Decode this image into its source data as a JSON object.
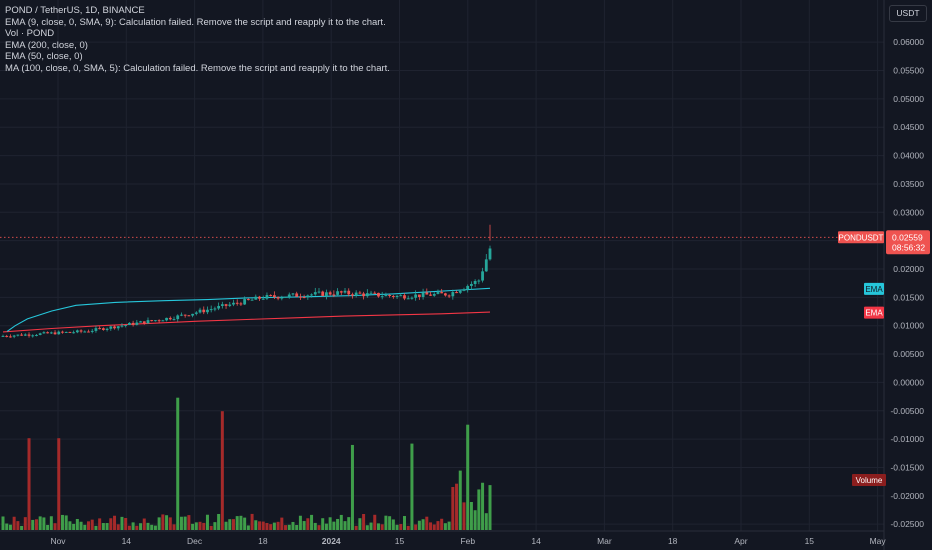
{
  "legend": {
    "title": "POND / TetherUS, 1D, BINANCE",
    "lines": [
      "EMA (9, close, 0, SMA, 9): Calculation failed. Remove the script and reapply it to the chart.",
      "Vol · POND",
      "EMA (200, close, 0)",
      "EMA (50, close, 0)",
      "MA (100, close, 0, SMA, 5): Calculation failed. Remove the script and reapply it to the chart."
    ]
  },
  "currency_label": "USDT",
  "colors": {
    "background": "#131722",
    "grid": "#1f2330",
    "up": "#26a69a",
    "down": "#ef5350",
    "vol_up": "#3f9e4a",
    "vol_down": "#a52a2a",
    "ema50": "#26c6da",
    "ema200": "#f23645",
    "text": "#d1d4dc",
    "axis_text": "#b2b5be"
  },
  "chart_data": {
    "type": "candlestick",
    "x_type": "time",
    "x_ticks": [
      "Nov",
      "14",
      "Dec",
      "18",
      "2024",
      "15",
      "Feb",
      "14",
      "Mar",
      "18",
      "Apr",
      "15",
      "May"
    ],
    "y_ticks": [
      "0.06000",
      "0.05500",
      "0.05000",
      "0.04500",
      "0.04000",
      "0.03500",
      "0.03000",
      "0.02500",
      "0.02000",
      "0.01500",
      "0.01000",
      "0.00500",
      "0.00000",
      "-0.00500",
      "-0.01000",
      "-0.01500",
      "-0.02000",
      "-0.02500"
    ],
    "ylim": [
      -0.0255,
      0.0625
    ],
    "grid": true,
    "last_price": {
      "symbol": "PONDUSDT",
      "value": "0.02559",
      "countdown": "08:56:32"
    },
    "ema_labels": [
      {
        "text": "EMA",
        "value": 0.0165
      },
      {
        "text": "EMA",
        "value": 0.0123
      }
    ],
    "volume_label": "Volume",
    "segments": [
      {
        "n": 22,
        "from": 0.0082,
        "to": 0.009
      },
      {
        "n": 24,
        "from": 0.009,
        "to": 0.0115
      },
      {
        "n": 24,
        "from": 0.0115,
        "to": 0.015
      },
      {
        "n": 20,
        "from": 0.015,
        "to": 0.0158
      },
      {
        "n": 16,
        "from": 0.0158,
        "to": 0.0152
      },
      {
        "n": 14,
        "from": 0.0152,
        "to": 0.0156
      },
      {
        "n": 8,
        "from": 0.0156,
        "to": 0.018
      },
      {
        "n": 4,
        "from": 0.018,
        "to": 0.0255
      }
    ],
    "ema50": [
      [
        0.0085,
        0.009
      ],
      [
        0.025,
        0.01
      ],
      [
        0.05,
        0.0112
      ],
      [
        0.1,
        0.0126
      ],
      [
        0.15,
        0.0136
      ],
      [
        0.23,
        0.0141
      ],
      [
        0.33,
        0.0144
      ],
      [
        0.42,
        0.0146
      ],
      [
        0.5,
        0.0149
      ],
      [
        0.62,
        0.0151
      ],
      [
        0.72,
        0.0153
      ],
      [
        0.8,
        0.0156
      ],
      [
        0.88,
        0.016
      ],
      [
        0.94,
        0.0163
      ],
      [
        1.0,
        0.0166
      ]
    ],
    "ema200": [
      [
        0.0,
        0.0089
      ],
      [
        0.1,
        0.0095
      ],
      [
        0.2,
        0.01
      ],
      [
        0.3,
        0.0104
      ],
      [
        0.4,
        0.0108
      ],
      [
        0.5,
        0.0111
      ],
      [
        0.6,
        0.0114
      ],
      [
        0.7,
        0.0117
      ],
      [
        0.8,
        0.0119
      ],
      [
        0.9,
        0.0121
      ],
      [
        1.0,
        0.0124
      ]
    ],
    "volume_spikes": [
      {
        "at": 0.055,
        "value": 0.68
      },
      {
        "at": 0.111,
        "value": 0.68
      },
      {
        "at": 0.355,
        "value": 0.98
      },
      {
        "at": 0.45,
        "value": 0.88
      },
      {
        "at": 0.72,
        "value": 0.63
      },
      {
        "at": 0.84,
        "value": 0.64
      },
      {
        "at": 0.94,
        "value": 0.44
      },
      {
        "at": 0.955,
        "value": 0.78
      },
      {
        "at": 0.985,
        "value": 0.35
      }
    ]
  }
}
